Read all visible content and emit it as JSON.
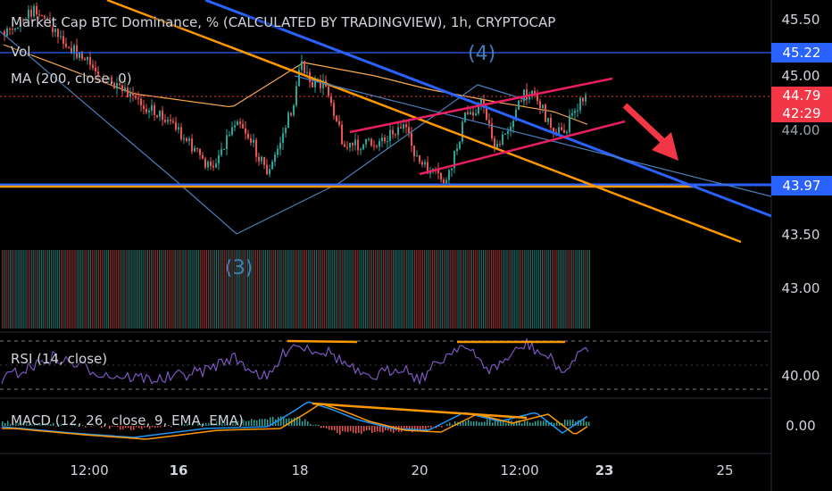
{
  "chart_data": {
    "type": "candlestick",
    "title": "Market Cap BTC Dominance, % (CALCULATED BY TRADINGVIEW), 1h, CRYPTOCAP",
    "indicators": {
      "vol": "Vol",
      "ma": "MA (200, close, 0)",
      "rsi": "RSI (14, close)",
      "macd": "MACD (12, 26, close, 9, EMA, EMA)"
    },
    "price_axis_ticks": [
      "45.50",
      "45.00",
      "43.50",
      "43.00"
    ],
    "highlighted_levels": [
      {
        "value": "45.22",
        "color": "#2962ff"
      },
      {
        "value": "43.97",
        "color": "#2962ff"
      }
    ],
    "current_price": {
      "value": "44.79",
      "countdown": "42:29",
      "color": "#f23645"
    },
    "partial_tick": "44.00",
    "rsi_axis": [
      "40.00"
    ],
    "macd_axis": [
      "0.00"
    ],
    "x_axis": [
      {
        "label": "12:00",
        "bold": false
      },
      {
        "label": "16",
        "bold": true
      },
      {
        "label": "18",
        "bold": false
      },
      {
        "label": "20",
        "bold": false
      },
      {
        "label": "12:00",
        "bold": false
      },
      {
        "label": "23",
        "bold": true
      },
      {
        "label": "25",
        "bold": false
      }
    ],
    "wave_labels": [
      "(4)",
      "(3)"
    ],
    "ylim": [
      42.6,
      45.7
    ],
    "colors": {
      "up": "#26a69a",
      "down": "#ef5350",
      "ma": "#f7a94d",
      "trend_blue": "#2962ff",
      "trend_orange": "#ff9800",
      "channel_pink": "#e91e63",
      "rsi": "#7e57c2",
      "macd": "#2196f3",
      "signal": "#ff9800"
    }
  }
}
